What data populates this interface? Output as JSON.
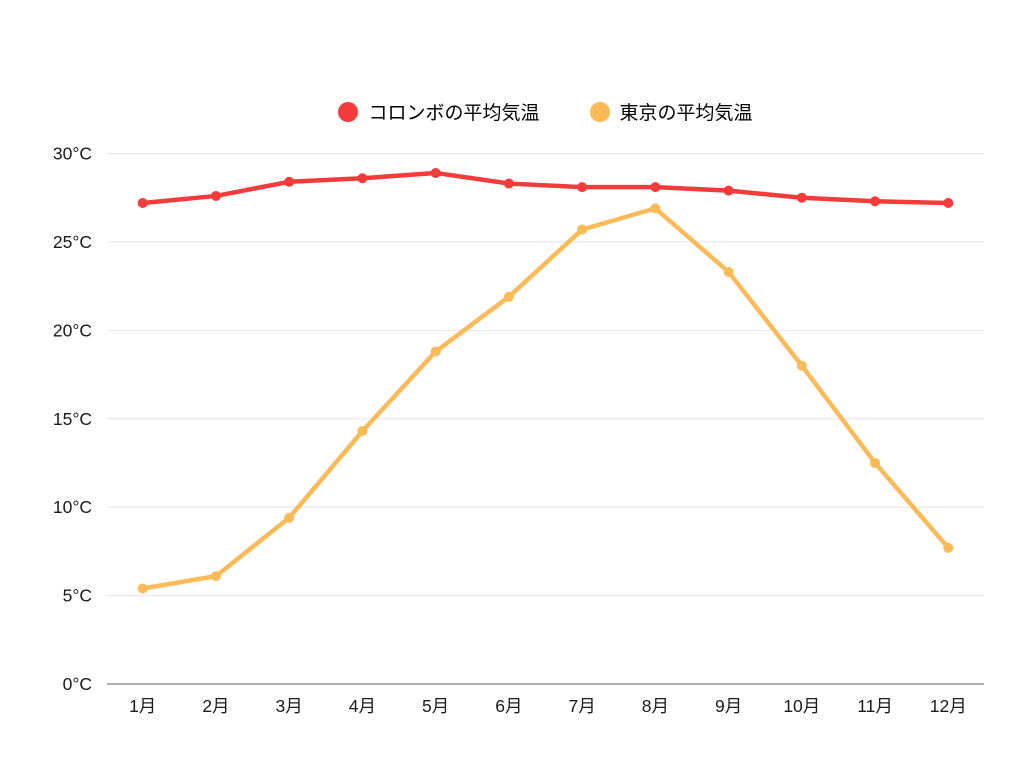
{
  "legend": {
    "items": [
      {
        "label": "コロンボの平均気温",
        "color": "#f23b3b"
      },
      {
        "label": "東京の平均気温",
        "color": "#fbba58"
      }
    ]
  },
  "chart_data": {
    "type": "line",
    "categories": [
      "1月",
      "2月",
      "3月",
      "4月",
      "5月",
      "6月",
      "7月",
      "8月",
      "9月",
      "10月",
      "11月",
      "12月"
    ],
    "series": [
      {
        "name": "コロンボの平均気温",
        "color": "#f23b3b",
        "values": [
          27.2,
          27.6,
          28.4,
          28.6,
          28.9,
          28.3,
          28.1,
          28.1,
          27.9,
          27.5,
          27.3,
          27.2
        ]
      },
      {
        "name": "東京の平均気温",
        "color": "#fbba58",
        "values": [
          5.4,
          6.1,
          9.4,
          14.3,
          18.8,
          21.9,
          25.7,
          26.9,
          23.3,
          18.0,
          12.5,
          7.7
        ]
      }
    ],
    "title": "",
    "xlabel": "",
    "ylabel": "",
    "ylim": [
      0,
      30
    ],
    "y_ticks": [
      0,
      5,
      10,
      15,
      20,
      25,
      30
    ],
    "y_tick_labels": [
      "0°C",
      "5°C",
      "10°C",
      "15°C",
      "20°C",
      "25°C",
      "30°C"
    ],
    "grid": true,
    "legend_position": "top-center"
  },
  "colors": {
    "background": "#ffffff",
    "gridline": "#e4e4e4",
    "zero_axis": "#b0b0b0",
    "tick_text": "#1a1a1a"
  }
}
